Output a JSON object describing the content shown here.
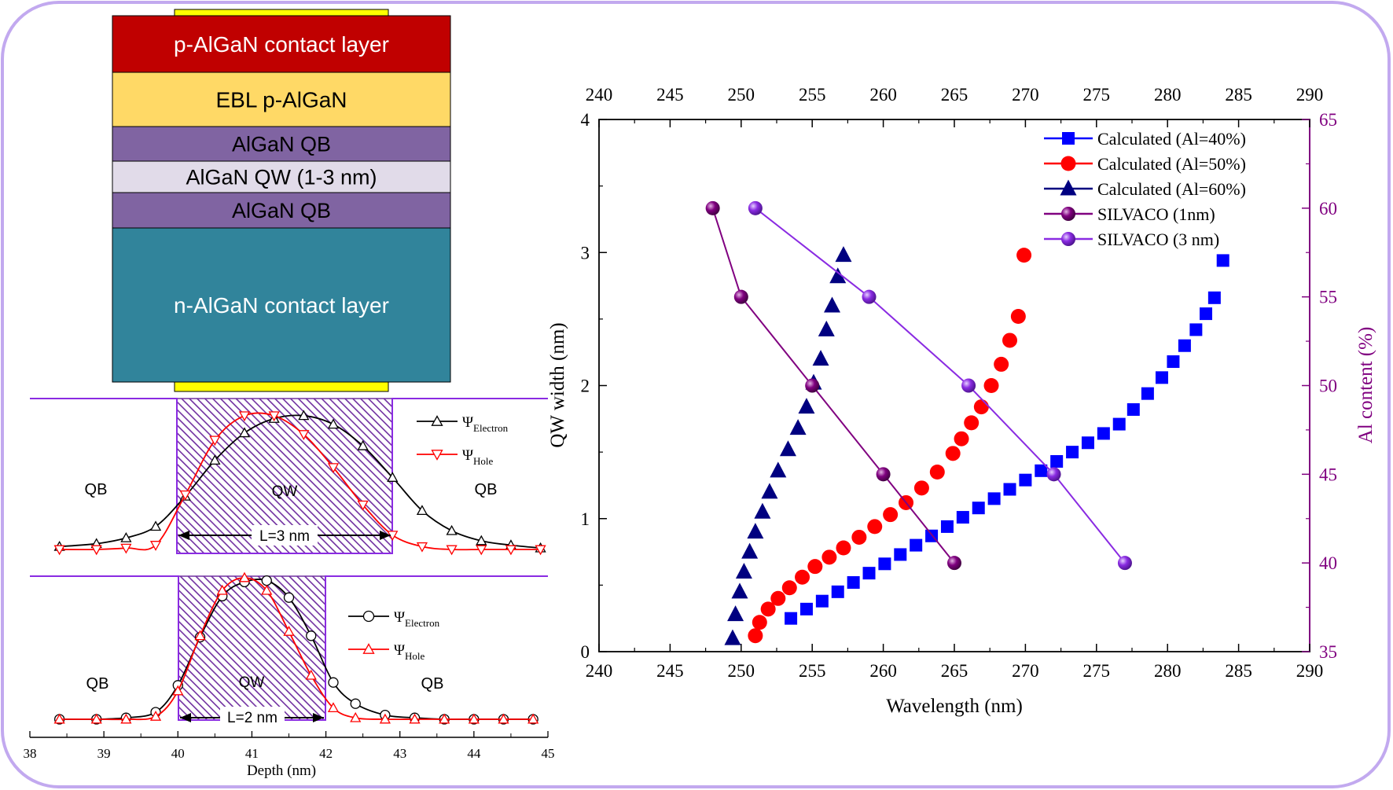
{
  "colors": {
    "frame": "#c2a9ef",
    "p_contact": "#c00000",
    "ebl": "#ffd966",
    "qb": "#8064a2",
    "qw": "#e1dbe9",
    "n_contact": "#31849b",
    "electrode": "#ffff00",
    "hatch": "#7030a0",
    "potential": "#8a2be2",
    "electron": "#000000",
    "hole": "#ff0000",
    "blue": "#0000ff",
    "red": "#ff0000",
    "navy": "#000080",
    "silvaco1": "#800080",
    "silvaco3": "#8a2be2",
    "al_axis": "#800080"
  },
  "stack": {
    "layers": [
      {
        "label": "p-AlGaN contact layer",
        "key": "p_contact",
        "text_color": "#ffffff"
      },
      {
        "label": "EBL p-AlGaN",
        "key": "ebl",
        "text_color": "#000000"
      },
      {
        "label": "AlGaN QB",
        "key": "qb",
        "text_color": "#000000"
      },
      {
        "label": "AlGaN QW (1-3 nm)",
        "key": "qw",
        "text_color": "#000000"
      },
      {
        "label": "AlGaN QB",
        "key": "qb",
        "text_color": "#000000"
      },
      {
        "label": "n-AlGaN contact layer",
        "key": "n_contact",
        "text_color": "#ffffff"
      }
    ]
  },
  "chart_data": [
    {
      "type": "line",
      "panel": "wavefunction-3nm",
      "x_range": [
        38,
        45
      ],
      "series": [
        {
          "name": "ΨElectron",
          "symbol": "Ψ",
          "subscript": "Electron",
          "marker": "triangle-up",
          "x": [
            38.4,
            38.9,
            39.3,
            39.7,
            40.1,
            40.5,
            40.9,
            41.3,
            41.7,
            42.1,
            42.5,
            42.9,
            43.3,
            43.7,
            44.1,
            44.5,
            44.9
          ],
          "y": [
            0.02,
            0.04,
            0.08,
            0.16,
            0.37,
            0.62,
            0.81,
            0.91,
            0.93,
            0.87,
            0.72,
            0.5,
            0.27,
            0.13,
            0.06,
            0.03,
            0.01
          ]
        },
        {
          "name": "ΨHole",
          "symbol": "Ψ",
          "subscript": "Hole",
          "marker": "triangle-down",
          "x": [
            38.4,
            38.9,
            39.3,
            39.7,
            40.1,
            40.5,
            40.9,
            41.3,
            41.7,
            42.1,
            42.5,
            42.9,
            43.3,
            43.7,
            44.1,
            44.5,
            44.9
          ],
          "y": [
            0.0,
            0.0,
            0.01,
            0.03,
            0.38,
            0.76,
            0.93,
            0.93,
            0.8,
            0.57,
            0.31,
            0.1,
            0.02,
            0.0,
            0.0,
            0.0,
            0.0
          ]
        }
      ],
      "well": [
        40,
        43
      ],
      "labels": {
        "left": "QB",
        "center": "QW",
        "right": "QB",
        "width": "L=3 nm"
      }
    },
    {
      "type": "line",
      "panel": "wavefunction-2nm",
      "x_range": [
        38,
        45
      ],
      "xlabel": "Depth (nm)",
      "xticks": [
        38,
        39,
        40,
        41,
        42,
        43,
        44,
        45
      ],
      "series": [
        {
          "name": "ΨElectron",
          "symbol": "Ψ",
          "subscript": "Electron",
          "marker": "circle",
          "x": [
            38.4,
            38.9,
            39.3,
            39.7,
            40.0,
            40.3,
            40.6,
            40.9,
            41.2,
            41.5,
            41.8,
            42.1,
            42.4,
            42.8,
            43.2,
            43.6,
            44.0,
            44.4,
            44.8
          ],
          "y": [
            0.0,
            0.0,
            0.01,
            0.05,
            0.24,
            0.58,
            0.87,
            0.97,
            0.98,
            0.86,
            0.59,
            0.26,
            0.11,
            0.03,
            0.01,
            0.0,
            0.0,
            0.0,
            0.0
          ]
        },
        {
          "name": "ΨHole",
          "symbol": "Ψ",
          "subscript": "Hole",
          "marker": "triangle-up",
          "x": [
            38.4,
            38.9,
            39.3,
            39.7,
            40.0,
            40.3,
            40.6,
            40.9,
            41.2,
            41.5,
            41.8,
            42.1,
            42.4,
            42.8,
            43.2,
            43.6,
            44.0,
            44.4,
            44.8
          ],
          "y": [
            0.0,
            0.0,
            0.0,
            0.02,
            0.2,
            0.59,
            0.91,
            1.0,
            0.91,
            0.62,
            0.31,
            0.08,
            0.01,
            0.0,
            0.0,
            0.0,
            0.0,
            0.0,
            0.0
          ]
        }
      ],
      "well": [
        40,
        42
      ],
      "labels": {
        "left": "QB",
        "center": "QW",
        "right": "QB",
        "width": "L=2 nm"
      }
    },
    {
      "type": "scatter",
      "panel": "wavelength",
      "xlabel": "Wavelength (nm)",
      "ylabel": "QW width (nm)",
      "y2label": "Al content (%)",
      "xlim": [
        240,
        290
      ],
      "ylim": [
        0,
        4
      ],
      "y2lim": [
        35,
        65
      ],
      "xticks": [
        240,
        245,
        250,
        255,
        260,
        265,
        270,
        275,
        280,
        285,
        290
      ],
      "yticks": [
        0,
        1,
        2,
        3,
        4
      ],
      "y2ticks": [
        35,
        40,
        45,
        50,
        55,
        60,
        65
      ],
      "legend_position": "top-right",
      "series": [
        {
          "name": "Calculated (Al=40%)",
          "marker": "square",
          "color_key": "blue",
          "axis": "left",
          "x": [
            253.5,
            254.6,
            255.7,
            256.8,
            257.9,
            259.0,
            260.1,
            261.2,
            262.3,
            263.4,
            264.5,
            265.6,
            266.7,
            267.8,
            268.9,
            270.0,
            271.1,
            272.2,
            273.3,
            274.4,
            275.5,
            276.6,
            277.6,
            278.6,
            279.6,
            280.4,
            281.2,
            282.0,
            282.7,
            283.3,
            283.9
          ],
          "y": [
            0.25,
            0.32,
            0.38,
            0.45,
            0.52,
            0.59,
            0.66,
            0.73,
            0.8,
            0.87,
            0.94,
            1.01,
            1.08,
            1.15,
            1.22,
            1.29,
            1.36,
            1.43,
            1.5,
            1.57,
            1.64,
            1.71,
            1.82,
            1.94,
            2.06,
            2.18,
            2.3,
            2.42,
            2.54,
            2.66,
            2.94
          ]
        },
        {
          "name": "Calculated (Al=50%)",
          "marker": "circle",
          "color_key": "red",
          "axis": "left",
          "x": [
            251.0,
            251.3,
            251.9,
            252.6,
            253.4,
            254.3,
            255.2,
            256.2,
            257.2,
            258.3,
            259.4,
            260.5,
            261.6,
            262.7,
            263.8,
            264.9,
            265.5,
            266.2,
            266.9,
            267.6,
            268.3,
            268.9,
            269.5,
            269.9
          ],
          "y": [
            0.12,
            0.22,
            0.32,
            0.4,
            0.48,
            0.56,
            0.64,
            0.71,
            0.78,
            0.86,
            0.94,
            1.03,
            1.12,
            1.23,
            1.35,
            1.49,
            1.6,
            1.72,
            1.84,
            2.0,
            2.16,
            2.34,
            2.52,
            2.98
          ]
        },
        {
          "name": "Calculated (Al=60%)",
          "marker": "triangle-up",
          "color_key": "navy",
          "axis": "left",
          "x": [
            249.4,
            249.6,
            249.9,
            250.2,
            250.6,
            251.0,
            251.5,
            252.0,
            252.6,
            253.3,
            254.0,
            254.6,
            255.1,
            255.6,
            256.0,
            256.4,
            256.8,
            257.2
          ],
          "y": [
            0.1,
            0.28,
            0.45,
            0.6,
            0.75,
            0.9,
            1.05,
            1.2,
            1.36,
            1.52,
            1.68,
            1.84,
            2.02,
            2.2,
            2.42,
            2.6,
            2.82,
            2.98
          ]
        },
        {
          "name": "SILVACO (1nm)",
          "marker": "sphere",
          "color_key": "silvaco1",
          "axis": "right",
          "x": [
            248,
            250,
            255,
            260,
            265
          ],
          "y": [
            60,
            55,
            50,
            45,
            40
          ]
        },
        {
          "name": "SILVACO (3 nm)",
          "marker": "sphere",
          "color_key": "silvaco3",
          "axis": "right",
          "x": [
            251,
            259,
            266,
            272,
            277
          ],
          "y": [
            60,
            55,
            50,
            45,
            40
          ]
        }
      ]
    }
  ]
}
